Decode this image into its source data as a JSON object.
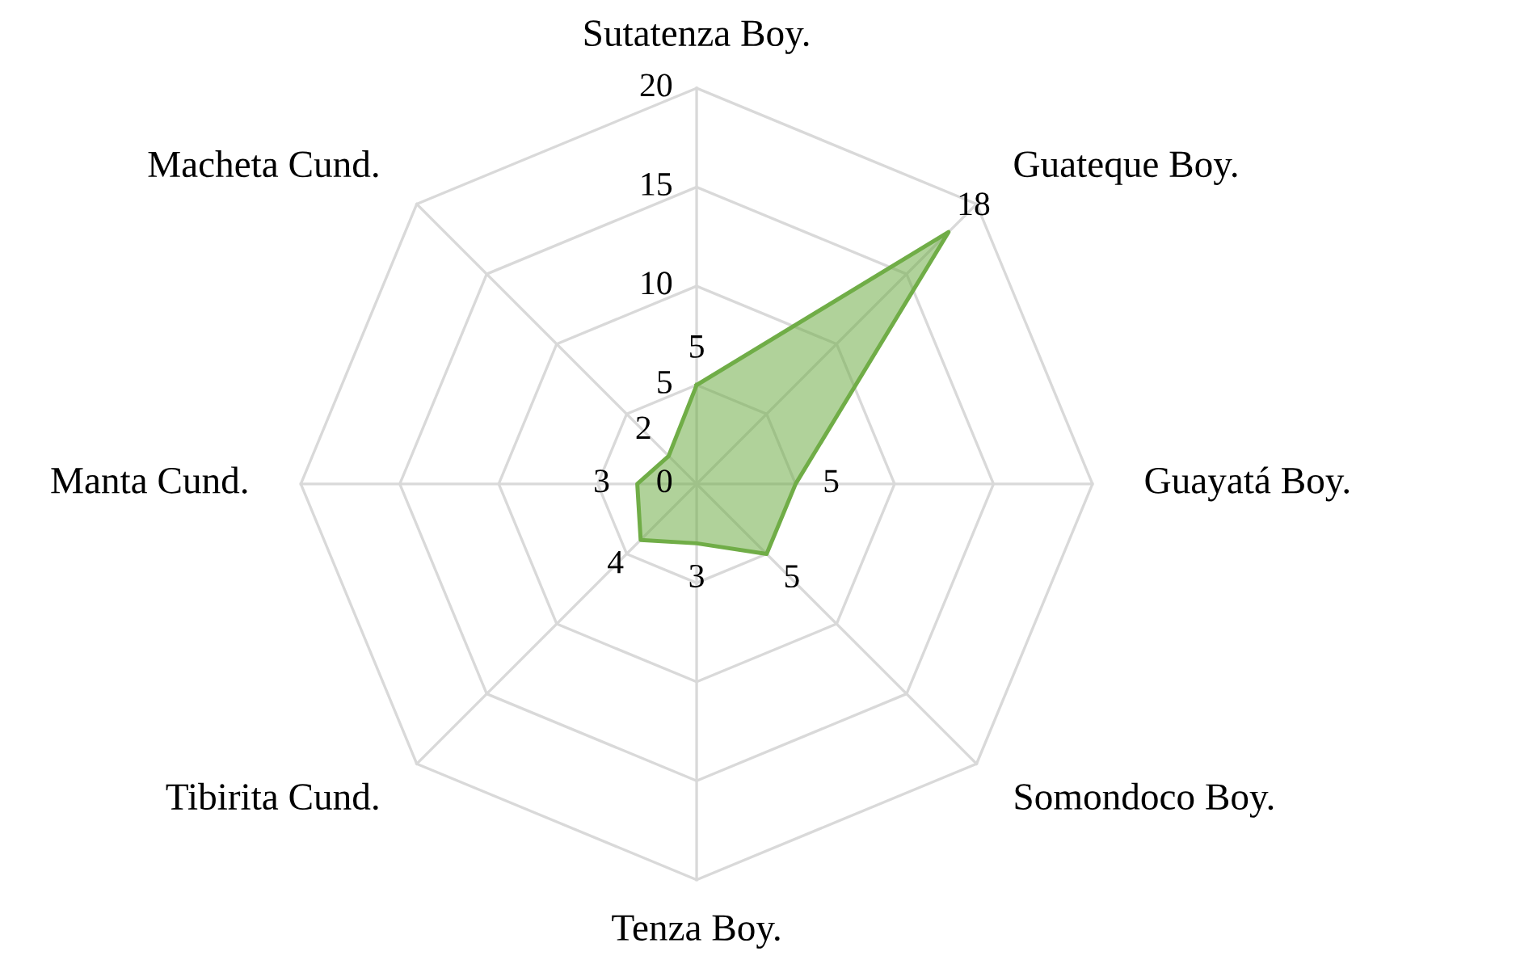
{
  "chart_data": {
    "type": "radar",
    "categories": [
      "Sutatenza Boy.",
      "Guateque Boy.",
      "Guayatá Boy.",
      "Somondoco Boy.",
      "Tenza Boy.",
      "Tibirita Cund.",
      "Manta Cund.",
      "Macheta Cund."
    ],
    "series": [
      {
        "color": "#70ad47",
        "values": [
          5,
          18,
          5,
          5,
          3,
          4,
          3,
          2
        ]
      }
    ],
    "ylim": [
      0,
      20
    ],
    "yticks": [
      0,
      5,
      10,
      15,
      20
    ],
    "grid": true,
    "data_labels": true
  }
}
